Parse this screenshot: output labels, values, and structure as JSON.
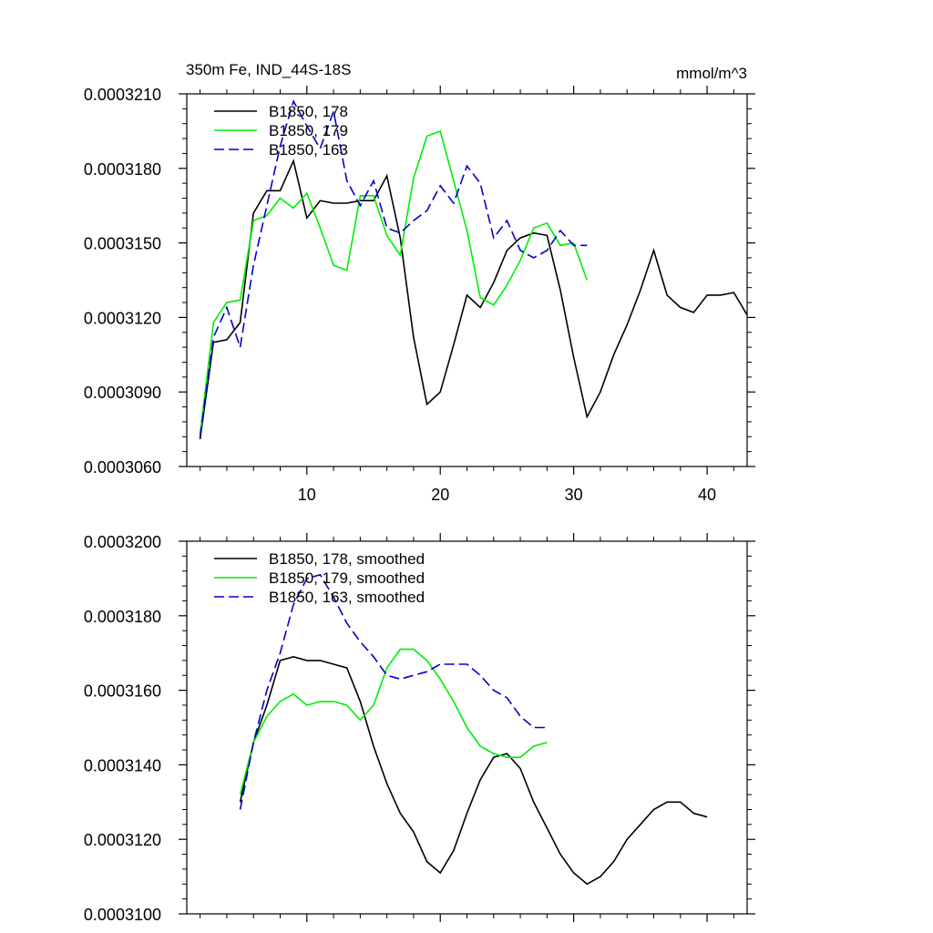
{
  "chart_data": [
    {
      "type": "line",
      "title": "350m Fe, IND_44S-18S",
      "units": "mmol/m^3",
      "xlim": [
        1,
        43
      ],
      "ylim": [
        0.000306,
        0.000321
      ],
      "x_ticks": [
        10,
        20,
        30,
        40
      ],
      "x_tick_labels": [
        "10",
        "20",
        "30",
        "40"
      ],
      "y_ticks": [
        0.000306,
        0.000309,
        0.000312,
        0.000315,
        0.000318,
        0.000321
      ],
      "y_tick_labels": [
        "0.0003060",
        "0.0003090",
        "0.0003120",
        "0.0003150",
        "0.0003180",
        "0.0003210"
      ],
      "legend_position": "top-left",
      "grid": false,
      "series": [
        {
          "name": "B1850, 178",
          "color": "#000000",
          "dash": "solid",
          "x": [
            2,
            3,
            4,
            5,
            6,
            7,
            8,
            9,
            10,
            11,
            12,
            13,
            14,
            15,
            16,
            17,
            18,
            19,
            20,
            21,
            22,
            23,
            24,
            25,
            26,
            27,
            28,
            29,
            30,
            31,
            32,
            33,
            34,
            35,
            36,
            37,
            38,
            39,
            40,
            41,
            42,
            43
          ],
          "y": [
            0.0003071,
            0.000311,
            0.0003111,
            0.0003118,
            0.0003162,
            0.0003171,
            0.0003171,
            0.0003183,
            0.000316,
            0.0003167,
            0.0003166,
            0.0003166,
            0.0003167,
            0.0003167,
            0.0003177,
            0.0003152,
            0.0003112,
            0.0003085,
            0.000309,
            0.0003109,
            0.0003129,
            0.0003124,
            0.0003134,
            0.0003147,
            0.0003152,
            0.0003154,
            0.0003153,
            0.0003131,
            0.0003104,
            0.000308,
            0.000309,
            0.0003105,
            0.0003117,
            0.0003131,
            0.0003147,
            0.0003129,
            0.0003124,
            0.0003122,
            0.0003129,
            0.0003129,
            0.000313,
            0.0003121
          ]
        },
        {
          "name": "B1850, 179",
          "color": "#00ee00",
          "dash": "solid",
          "x": [
            2,
            3,
            4,
            5,
            6,
            7,
            8,
            9,
            10,
            11,
            12,
            13,
            14,
            15,
            16,
            17,
            18,
            19,
            20,
            21,
            22,
            23,
            24,
            25,
            26,
            27,
            28,
            29,
            30,
            31
          ],
          "y": [
            0.0003073,
            0.0003118,
            0.0003126,
            0.0003127,
            0.0003159,
            0.0003161,
            0.0003168,
            0.0003164,
            0.000317,
            0.0003156,
            0.0003141,
            0.0003139,
            0.0003169,
            0.0003169,
            0.0003153,
            0.0003145,
            0.0003176,
            0.0003193,
            0.0003195,
            0.0003175,
            0.0003155,
            0.0003128,
            0.0003125,
            0.0003133,
            0.0003143,
            0.0003156,
            0.0003158,
            0.0003149,
            0.000315,
            0.0003135
          ]
        },
        {
          "name": "B1850, 163",
          "color": "#0000cc",
          "dash": "dashed",
          "x": [
            2,
            3,
            4,
            5,
            6,
            7,
            8,
            9,
            10,
            11,
            12,
            13,
            14,
            15,
            16,
            17,
            18,
            19,
            20,
            21,
            22,
            23,
            24,
            25,
            26,
            27,
            28,
            29,
            30,
            31
          ],
          "y": [
            0.0003072,
            0.0003112,
            0.0003124,
            0.0003108,
            0.0003141,
            0.0003165,
            0.0003189,
            0.0003207,
            0.0003197,
            0.0003188,
            0.0003203,
            0.0003175,
            0.0003165,
            0.0003175,
            0.0003156,
            0.0003154,
            0.0003159,
            0.0003163,
            0.0003173,
            0.0003166,
            0.0003181,
            0.0003174,
            0.0003152,
            0.0003159,
            0.0003147,
            0.0003144,
            0.0003147,
            0.0003155,
            0.0003149,
            0.0003149
          ]
        }
      ]
    },
    {
      "type": "line",
      "xlim": [
        1,
        43
      ],
      "ylim": [
        0.00031,
        0.00032
      ],
      "x_ticks": [
        10,
        20,
        30,
        40
      ],
      "x_tick_labels": [],
      "y_ticks": [
        0.00031,
        0.000312,
        0.000314,
        0.000316,
        0.000318,
        0.00032
      ],
      "y_tick_labels": [
        "0.0003100",
        "0.0003120",
        "0.0003140",
        "0.0003160",
        "0.0003180",
        "0.0003200"
      ],
      "legend_position": "top-left",
      "grid": false,
      "series": [
        {
          "name": "B1850, 178, smoothed",
          "color": "#000000",
          "dash": "solid",
          "x": [
            5,
            6,
            7,
            8,
            9,
            10,
            11,
            12,
            13,
            14,
            15,
            16,
            17,
            18,
            19,
            20,
            21,
            22,
            23,
            24,
            25,
            26,
            27,
            28,
            29,
            30,
            31,
            32,
            33,
            34,
            35,
            36,
            37,
            38,
            39,
            40
          ],
          "y": [
            0.000313,
            0.0003146,
            0.0003156,
            0.0003168,
            0.0003169,
            0.0003168,
            0.0003168,
            0.0003167,
            0.0003166,
            0.0003157,
            0.0003145,
            0.0003135,
            0.0003127,
            0.0003122,
            0.0003114,
            0.0003111,
            0.0003117,
            0.0003127,
            0.0003136,
            0.0003142,
            0.0003143,
            0.0003139,
            0.000313,
            0.0003123,
            0.0003116,
            0.0003111,
            0.0003108,
            0.000311,
            0.0003114,
            0.000312,
            0.0003124,
            0.0003128,
            0.000313,
            0.000313,
            0.0003127,
            0.0003126
          ]
        },
        {
          "name": "B1850, 179, smoothed",
          "color": "#00ee00",
          "dash": "solid",
          "x": [
            5,
            6,
            7,
            8,
            9,
            10,
            11,
            12,
            13,
            14,
            15,
            16,
            17,
            18,
            19,
            20,
            21,
            22,
            23,
            24,
            25,
            26,
            27,
            28
          ],
          "y": [
            0.0003132,
            0.0003146,
            0.0003153,
            0.0003157,
            0.0003159,
            0.0003156,
            0.0003157,
            0.0003157,
            0.0003156,
            0.0003152,
            0.0003156,
            0.0003166,
            0.0003171,
            0.0003171,
            0.0003168,
            0.0003163,
            0.0003157,
            0.000315,
            0.0003145,
            0.0003143,
            0.0003142,
            0.0003142,
            0.0003145,
            0.0003146
          ]
        },
        {
          "name": "B1850, 163, smoothed",
          "color": "#0000cc",
          "dash": "dashed",
          "x": [
            5,
            6,
            7,
            8,
            9,
            10,
            11,
            12,
            13,
            14,
            15,
            16,
            17,
            18,
            19,
            20,
            21,
            22,
            23,
            24,
            25,
            26,
            27,
            28
          ],
          "y": [
            0.0003128,
            0.0003146,
            0.000316,
            0.000317,
            0.0003183,
            0.000319,
            0.0003191,
            0.0003185,
            0.0003178,
            0.0003173,
            0.0003169,
            0.0003164,
            0.0003163,
            0.0003164,
            0.0003165,
            0.0003167,
            0.0003167,
            0.0003167,
            0.0003164,
            0.000316,
            0.0003158,
            0.0003153,
            0.000315,
            0.000315
          ]
        }
      ]
    }
  ]
}
